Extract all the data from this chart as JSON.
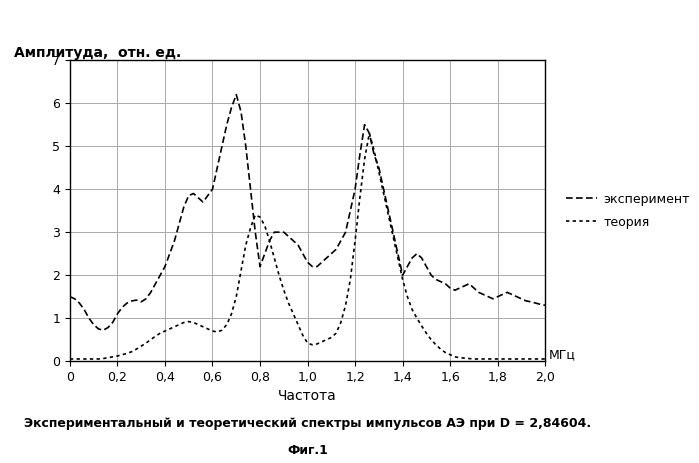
{
  "title_ylabel": "Амплитуда,  отн. ед.",
  "xlabel": "Частота",
  "xlabel_mhz": "МГц",
  "caption_line1": "Экспериментальный и теоретический спектры импульсов АЭ при D = 2,84604.",
  "caption_line2": "Фиг.1",
  "legend_exp": "эксперимент",
  "legend_theory": "теория",
  "xlim": [
    0,
    2.0
  ],
  "ylim": [
    0,
    7
  ],
  "xticks": [
    0,
    0.2,
    0.4,
    0.6,
    0.8,
    1.0,
    1.2,
    1.4,
    1.6,
    1.8,
    2.0
  ],
  "yticks": [
    0,
    1,
    2,
    3,
    4,
    5,
    6,
    7
  ],
  "exp_x": [
    0.0,
    0.02,
    0.04,
    0.06,
    0.08,
    0.1,
    0.12,
    0.14,
    0.16,
    0.18,
    0.2,
    0.22,
    0.24,
    0.26,
    0.28,
    0.3,
    0.32,
    0.34,
    0.36,
    0.38,
    0.4,
    0.42,
    0.44,
    0.46,
    0.48,
    0.5,
    0.52,
    0.54,
    0.56,
    0.58,
    0.6,
    0.62,
    0.64,
    0.66,
    0.68,
    0.7,
    0.72,
    0.74,
    0.76,
    0.78,
    0.8,
    0.82,
    0.84,
    0.86,
    0.88,
    0.9,
    0.92,
    0.94,
    0.96,
    0.98,
    1.0,
    1.02,
    1.04,
    1.06,
    1.08,
    1.1,
    1.12,
    1.14,
    1.16,
    1.18,
    1.2,
    1.22,
    1.24,
    1.26,
    1.28,
    1.3,
    1.32,
    1.34,
    1.36,
    1.38,
    1.4,
    1.42,
    1.44,
    1.46,
    1.48,
    1.5,
    1.52,
    1.54,
    1.56,
    1.58,
    1.6,
    1.62,
    1.64,
    1.66,
    1.68,
    1.7,
    1.72,
    1.74,
    1.76,
    1.78,
    1.8,
    1.82,
    1.84,
    1.86,
    1.88,
    1.9,
    1.92,
    1.94,
    1.96,
    1.98,
    2.0
  ],
  "exp_y": [
    1.5,
    1.45,
    1.35,
    1.2,
    1.0,
    0.85,
    0.75,
    0.72,
    0.78,
    0.9,
    1.1,
    1.25,
    1.35,
    1.4,
    1.42,
    1.38,
    1.45,
    1.6,
    1.8,
    2.0,
    2.2,
    2.5,
    2.8,
    3.2,
    3.6,
    3.85,
    3.9,
    3.8,
    3.7,
    3.85,
    4.0,
    4.5,
    5.0,
    5.5,
    5.9,
    6.2,
    5.8,
    5.0,
    4.0,
    3.0,
    2.2,
    2.5,
    2.8,
    3.0,
    3.0,
    3.0,
    2.9,
    2.8,
    2.7,
    2.5,
    2.3,
    2.2,
    2.2,
    2.3,
    2.4,
    2.5,
    2.6,
    2.8,
    3.0,
    3.5,
    4.0,
    4.8,
    5.5,
    5.3,
    4.8,
    4.5,
    4.0,
    3.5,
    3.0,
    2.5,
    2.0,
    2.2,
    2.4,
    2.5,
    2.4,
    2.2,
    2.0,
    1.9,
    1.85,
    1.8,
    1.7,
    1.65,
    1.7,
    1.75,
    1.8,
    1.7,
    1.6,
    1.55,
    1.5,
    1.45,
    1.5,
    1.55,
    1.6,
    1.55,
    1.5,
    1.45,
    1.4,
    1.38,
    1.35,
    1.32,
    1.3
  ],
  "theory_x": [
    0.0,
    0.02,
    0.04,
    0.06,
    0.08,
    0.1,
    0.12,
    0.14,
    0.16,
    0.18,
    0.2,
    0.22,
    0.24,
    0.26,
    0.28,
    0.3,
    0.32,
    0.34,
    0.36,
    0.38,
    0.4,
    0.42,
    0.44,
    0.46,
    0.48,
    0.5,
    0.52,
    0.54,
    0.56,
    0.58,
    0.6,
    0.62,
    0.64,
    0.66,
    0.68,
    0.7,
    0.72,
    0.74,
    0.76,
    0.78,
    0.8,
    0.82,
    0.84,
    0.86,
    0.88,
    0.9,
    0.92,
    0.94,
    0.96,
    0.98,
    1.0,
    1.02,
    1.04,
    1.06,
    1.08,
    1.1,
    1.12,
    1.14,
    1.16,
    1.18,
    1.2,
    1.22,
    1.24,
    1.26,
    1.28,
    1.3,
    1.32,
    1.34,
    1.36,
    1.38,
    1.4,
    1.42,
    1.44,
    1.46,
    1.48,
    1.5,
    1.52,
    1.54,
    1.56,
    1.58,
    1.6,
    1.62,
    1.64,
    1.66,
    1.68,
    1.7,
    1.72,
    1.74,
    1.76,
    1.78,
    1.8,
    1.82,
    1.84,
    1.86,
    1.88,
    1.9,
    1.92,
    1.94,
    1.96,
    1.98,
    2.0
  ],
  "theory_y": [
    0.05,
    0.05,
    0.05,
    0.05,
    0.05,
    0.05,
    0.05,
    0.06,
    0.08,
    0.1,
    0.12,
    0.15,
    0.18,
    0.22,
    0.28,
    0.35,
    0.42,
    0.5,
    0.58,
    0.65,
    0.7,
    0.75,
    0.8,
    0.85,
    0.9,
    0.92,
    0.9,
    0.85,
    0.8,
    0.75,
    0.7,
    0.68,
    0.72,
    0.85,
    1.1,
    1.5,
    2.1,
    2.7,
    3.1,
    3.4,
    3.35,
    3.15,
    2.8,
    2.4,
    2.0,
    1.65,
    1.35,
    1.1,
    0.85,
    0.6,
    0.42,
    0.38,
    0.4,
    0.45,
    0.5,
    0.55,
    0.65,
    0.9,
    1.3,
    1.9,
    2.8,
    3.8,
    4.7,
    5.3,
    4.9,
    4.4,
    3.9,
    3.4,
    2.9,
    2.4,
    1.9,
    1.5,
    1.2,
    1.0,
    0.82,
    0.65,
    0.5,
    0.38,
    0.28,
    0.2,
    0.15,
    0.1,
    0.08,
    0.07,
    0.06,
    0.05,
    0.05,
    0.05,
    0.05,
    0.05,
    0.05,
    0.05,
    0.05,
    0.05,
    0.05,
    0.05,
    0.05,
    0.05,
    0.05,
    0.05,
    0.05
  ],
  "line_color": "#000000",
  "bg_color": "#ffffff",
  "grid_color": "#aaaaaa"
}
